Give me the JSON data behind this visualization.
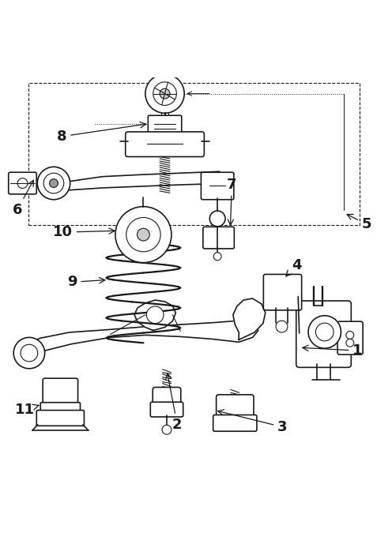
{
  "title": "",
  "bg_color": "#ffffff",
  "line_color": "#1a1a1a",
  "label_color": "#1a1a1a",
  "label_fontsize": 13,
  "label_fontweight": "bold",
  "figsize": [
    4.96,
    6.89
  ],
  "dpi": 100
}
